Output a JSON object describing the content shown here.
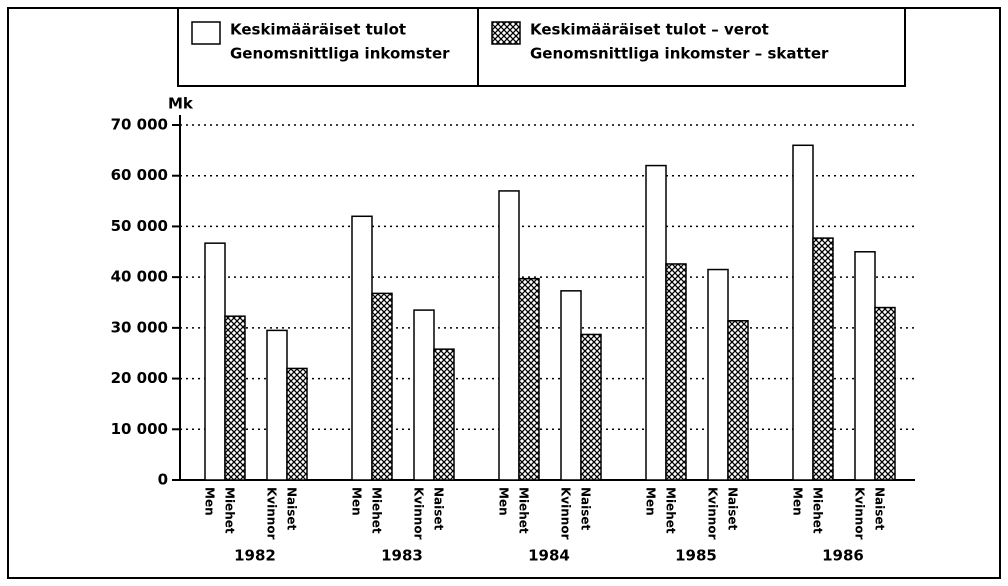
{
  "chart_data": {
    "type": "grouped_bar",
    "ylabel": "Mk",
    "groups": [
      "1982",
      "1983",
      "1984",
      "1985",
      "1986"
    ],
    "subgroups": [
      [
        "Men",
        "Miehet"
      ],
      [
        "Kvinnor",
        "Naiset"
      ]
    ],
    "series": [
      {
        "name": [
          "Keskimääräiset tulot",
          "Genomsnittliga inkomster"
        ],
        "color": "#ffffff",
        "pattern": "none",
        "values": [
          46700,
          29500,
          52000,
          33500,
          57000,
          37300,
          62000,
          41500,
          66000,
          45000
        ]
      },
      {
        "name": [
          "Keskimääräiset tulot – verot",
          "Genomsnittliga inkomster – skatter"
        ],
        "color": "#ffffff",
        "pattern": "crosshatch",
        "values": [
          32300,
          22000,
          36800,
          25800,
          39700,
          28700,
          42600,
          31400,
          47700,
          34000
        ]
      }
    ],
    "ylim": [
      0,
      70000
    ],
    "yticks": [
      0,
      {
        "value": 10000,
        "label": "10 000"
      },
      {
        "value": 20000,
        "label": "20 000"
      },
      {
        "value": 30000,
        "label": "30 000"
      },
      {
        "value": 40000,
        "label": "40 000"
      },
      {
        "value": 50000,
        "label": "50 000"
      },
      {
        "value": 60000,
        "label": "60 000"
      },
      {
        "value": 70000,
        "label": "70 000"
      }
    ],
    "grid": true
  }
}
